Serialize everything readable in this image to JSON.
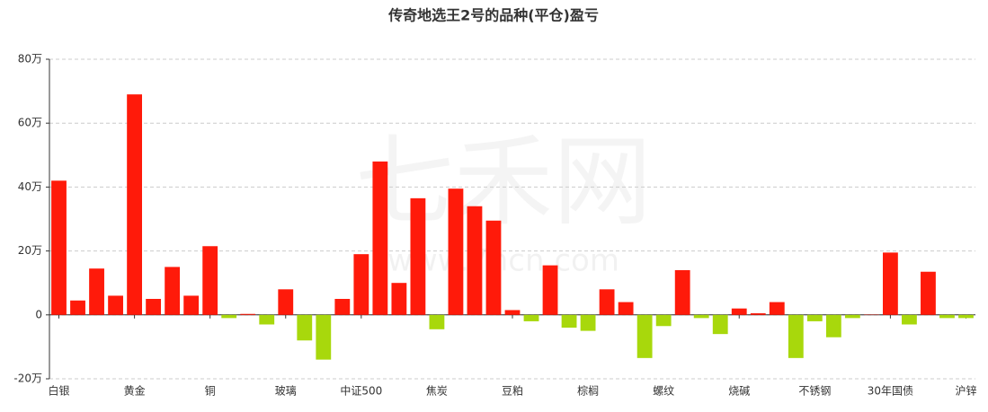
{
  "chart_data": {
    "type": "bar",
    "title": "传奇地选王2号的品种(平仓)盈亏",
    "watermark": [
      "七禾网",
      "www.7hcn.com"
    ],
    "categories": [
      "白银",
      null,
      null,
      null,
      "黄金",
      null,
      null,
      null,
      "铜",
      null,
      null,
      null,
      "玻璃",
      null,
      null,
      null,
      "中证500",
      null,
      null,
      null,
      "焦炭",
      null,
      null,
      null,
      "豆粕",
      null,
      null,
      null,
      "棕榈",
      null,
      null,
      null,
      "螺纹",
      null,
      null,
      null,
      "烧碱",
      null,
      null,
      null,
      "不锈钢",
      null,
      null,
      null,
      "30年国债",
      null,
      null,
      null,
      "沪锌"
    ],
    "values": [
      42,
      4.5,
      14.5,
      6,
      69,
      5,
      15,
      6,
      21.5,
      -1,
      0.3,
      -3,
      8,
      -8,
      -14,
      5,
      19,
      48,
      10,
      36.5,
      -4.5,
      39.5,
      34,
      29.5,
      1.5,
      -2,
      15.5,
      -4,
      -5,
      8,
      4,
      -13.5,
      -3.5,
      14,
      -1,
      -6,
      2,
      0.5,
      4,
      -13.5,
      -2,
      -7,
      -1,
      0.1,
      19.5,
      -3,
      13.5,
      -1,
      -1
    ],
    "positive_color": "#ff1a0a",
    "negative_color": "#a8d80c",
    "ylim": [
      -20,
      80
    ],
    "yticks": [
      {
        "value": -20,
        "label": "-20万"
      },
      0,
      {
        "value": 20,
        "label": "20万"
      },
      {
        "value": 40,
        "label": "40万"
      },
      {
        "value": 60,
        "label": "60万"
      },
      {
        "value": 80,
        "label": "80万"
      }
    ],
    "grid": true
  }
}
